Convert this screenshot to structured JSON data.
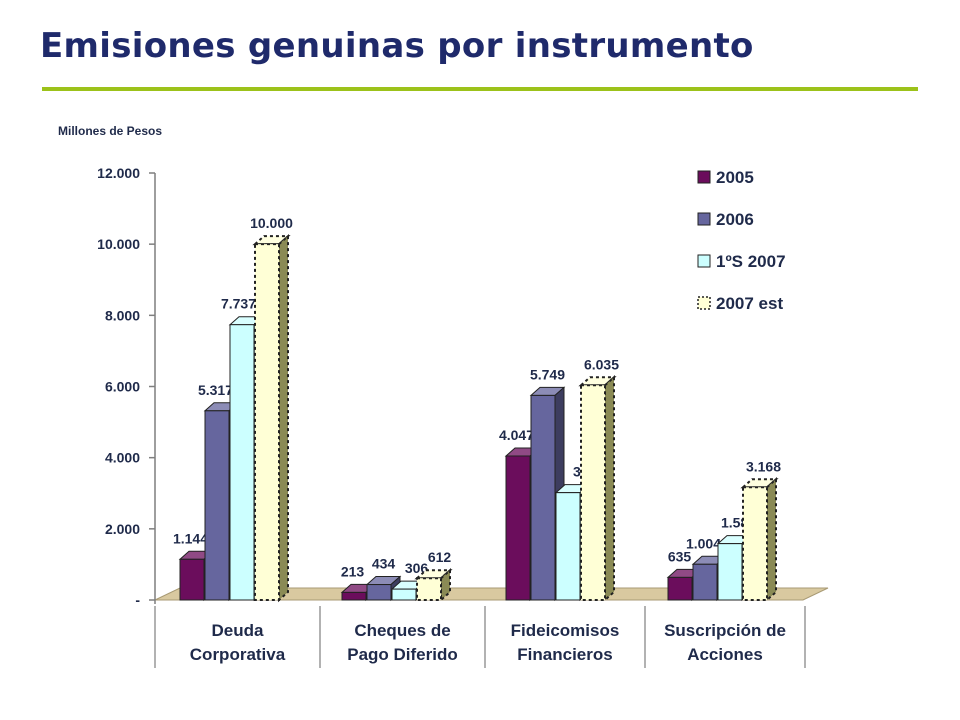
{
  "title": "Emisiones genuinas por instrumento",
  "colors": {
    "title": "#1f2a6b",
    "rule": "#9cc21a",
    "s2005": "#6b0d5c",
    "s2006": "#66669e",
    "s1s2007": "#ccffff",
    "s2007est": "#ffffd6"
  },
  "chart_data": {
    "type": "bar",
    "ylabel": "Millones de Pesos",
    "ylim": [
      0,
      12000
    ],
    "yticks": [
      {
        "value": 0,
        "label": "-"
      },
      {
        "value": 2000,
        "label": "2.000"
      },
      {
        "value": 4000,
        "label": "4.000"
      },
      {
        "value": 6000,
        "label": "6.000"
      },
      {
        "value": 8000,
        "label": "8.000"
      },
      {
        "value": 10000,
        "label": "10.000"
      },
      {
        "value": 12000,
        "label": "12.000"
      }
    ],
    "categories": [
      [
        "Deuda",
        "Corporativa"
      ],
      [
        "Cheques de",
        "Pago Diferido"
      ],
      [
        "Fideicomisos",
        "Financieros"
      ],
      [
        "Suscripción de",
        "Acciones"
      ]
    ],
    "series": [
      {
        "name": "2005",
        "values": [
          1144,
          213,
          4047,
          635
        ],
        "labels": [
          "1.144",
          "213",
          "4.047",
          "635"
        ]
      },
      {
        "name": "2006",
        "values": [
          5317,
          434,
          5749,
          1004
        ],
        "labels": [
          "5.317",
          "434",
          "5.749",
          "1.004"
        ]
      },
      {
        "name": "1ºS 2007",
        "values": [
          7737,
          306,
          3017,
          1584
        ],
        "labels": [
          "7.737",
          "306",
          "3.017",
          "1.584"
        ]
      },
      {
        "name": "2007 est",
        "values": [
          10000,
          612,
          6035,
          3168
        ],
        "labels": [
          "10.000",
          "612",
          "6.035",
          "3.168"
        ]
      }
    ],
    "legend_position": "top-right",
    "grid": false
  }
}
